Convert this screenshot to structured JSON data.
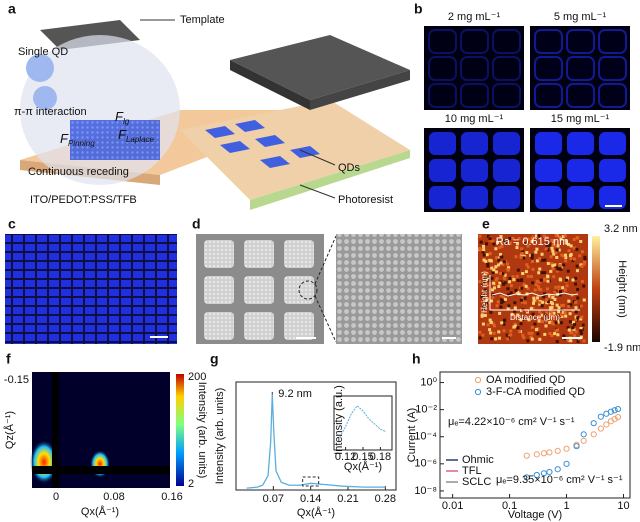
{
  "panels": {
    "a": {
      "label": "a",
      "template": "Template",
      "single_qd": "Single QD",
      "pi_interaction": "π-π interaction",
      "forces": [
        {
          "symbol": "F",
          "sub": "lg"
        },
        {
          "symbol": "F",
          "sub": "Pinning"
        },
        {
          "symbol": "F",
          "sub": "Laplace"
        }
      ],
      "receding": "Continuous receding",
      "substrate": "ITO/PEDOT:PSS/TFB",
      "qds": "QDs",
      "photoresist": "Photoresist"
    },
    "b": {
      "label": "b",
      "concentrations": [
        "2 mg mL⁻¹",
        "5 mg mL⁻¹",
        "10 mg mL⁻¹",
        "15 mg mL⁻¹"
      ]
    },
    "c": {
      "label": "c"
    },
    "d": {
      "label": "d"
    },
    "e": {
      "label": "e",
      "roughness": "Ra = 0.615 nm",
      "colorbar_max": "3.2 nm",
      "colorbar_min": "-1.9 nm",
      "colorbar_title": "Height (nm)",
      "inset_ylabel": "Height (nm)",
      "inset_xlabel": "Distance (μm)"
    },
    "f": {
      "label": "f",
      "yticks": [
        -0.15
      ],
      "xticks": [
        0,
        0.08,
        0.16
      ],
      "ylabel": "Qz(Å⁻¹)",
      "xlabel": "Qx(Å⁻¹)",
      "colorbar_max": "200",
      "colorbar_min": "2",
      "colorbar_title": "Intensity (arb. units)"
    }
  },
  "chart_data": [
    {
      "type": "line",
      "label": "g",
      "ylabel": "Intensity (arb. units)",
      "xlabel": "Qx(Å⁻¹)",
      "annotation": "9.2 nm",
      "x": [
        0.02,
        0.04,
        0.05,
        0.06,
        0.065,
        0.068,
        0.071,
        0.075,
        0.085,
        0.1,
        0.12,
        0.14,
        0.16,
        0.2,
        0.24,
        0.28
      ],
      "values": [
        0.02,
        0.03,
        0.05,
        0.15,
        0.5,
        1.0,
        0.6,
        0.2,
        0.08,
        0.05,
        0.05,
        0.07,
        0.06,
        0.04,
        0.03,
        0.03
      ],
      "color": "#5aaee0",
      "xlim": [
        0,
        0.3
      ],
      "ylim": [
        0,
        1.1
      ],
      "xticks": [
        0.07,
        0.14,
        0.21,
        0.28
      ],
      "inset": {
        "ylabel": "Intensity (a.u.)",
        "xlabel": "Qx(Å⁻¹)",
        "x": [
          0.11,
          0.12,
          0.13,
          0.14,
          0.15,
          0.16,
          0.17,
          0.18,
          0.19
        ],
        "values": [
          0.25,
          0.45,
          0.7,
          0.85,
          0.75,
          0.6,
          0.5,
          0.4,
          0.35
        ],
        "xlim": [
          0.1,
          0.2
        ],
        "ylim": [
          0,
          1
        ],
        "xticks": [
          0.12,
          0.15,
          0.18
        ]
      }
    },
    {
      "type": "scatter",
      "label": "h",
      "log_x": true,
      "log_y": true,
      "xlabel": "Voltage (V)",
      "ylabel": "Current (A)",
      "x": [
        0.2,
        0.3,
        0.4,
        0.5,
        0.7,
        1,
        1.5,
        2,
        3,
        4,
        5,
        6,
        7,
        8
      ],
      "series": [
        {
          "name": "OA modified QD",
          "color": "#f0a070",
          "values": [
            4e-06,
            5e-06,
            6e-06,
            7e-06,
            9e-06,
            1.3e-05,
            2.5e-05,
            5e-05,
            0.00015,
            0.0004,
            0.0008,
            0.0014,
            0.002,
            0.0028
          ]
        },
        {
          "name": "3-F-CA modified QD",
          "color": "#3a8fd8",
          "values": [
            1e-07,
            1.5e-07,
            2e-07,
            2.5e-07,
            4e-07,
            1e-06,
            2e-05,
            0.00015,
            0.001,
            0.003,
            0.005,
            0.007,
            0.009,
            0.011
          ]
        }
      ],
      "fits": [
        {
          "name": "Ohmic",
          "color": "#2b3a80"
        },
        {
          "name": "TFL",
          "color": "#e0608a"
        },
        {
          "name": "SCLC",
          "color": "#909090"
        }
      ],
      "annotations": [
        "μₑ=4.22×10⁻⁶ cm² V⁻¹ s⁻¹",
        "μₑ=9.35×10⁻⁶ cm² V⁻¹ s⁻¹"
      ],
      "xlim": [
        0.006,
        13
      ],
      "ylim": [
        3e-09,
        6
      ],
      "xticks": [
        0.01,
        0.1,
        1,
        10
      ],
      "yticks": [
        {
          "value": 1,
          "label": "10⁰"
        },
        {
          "value": 0.01,
          "label": "10⁻²"
        },
        {
          "value": 0.0001,
          "label": "10⁻⁴"
        },
        {
          "value": 1e-06,
          "label": "10⁻⁶"
        },
        {
          "value": 1e-08,
          "label": "10⁻⁸"
        }
      ]
    }
  ]
}
